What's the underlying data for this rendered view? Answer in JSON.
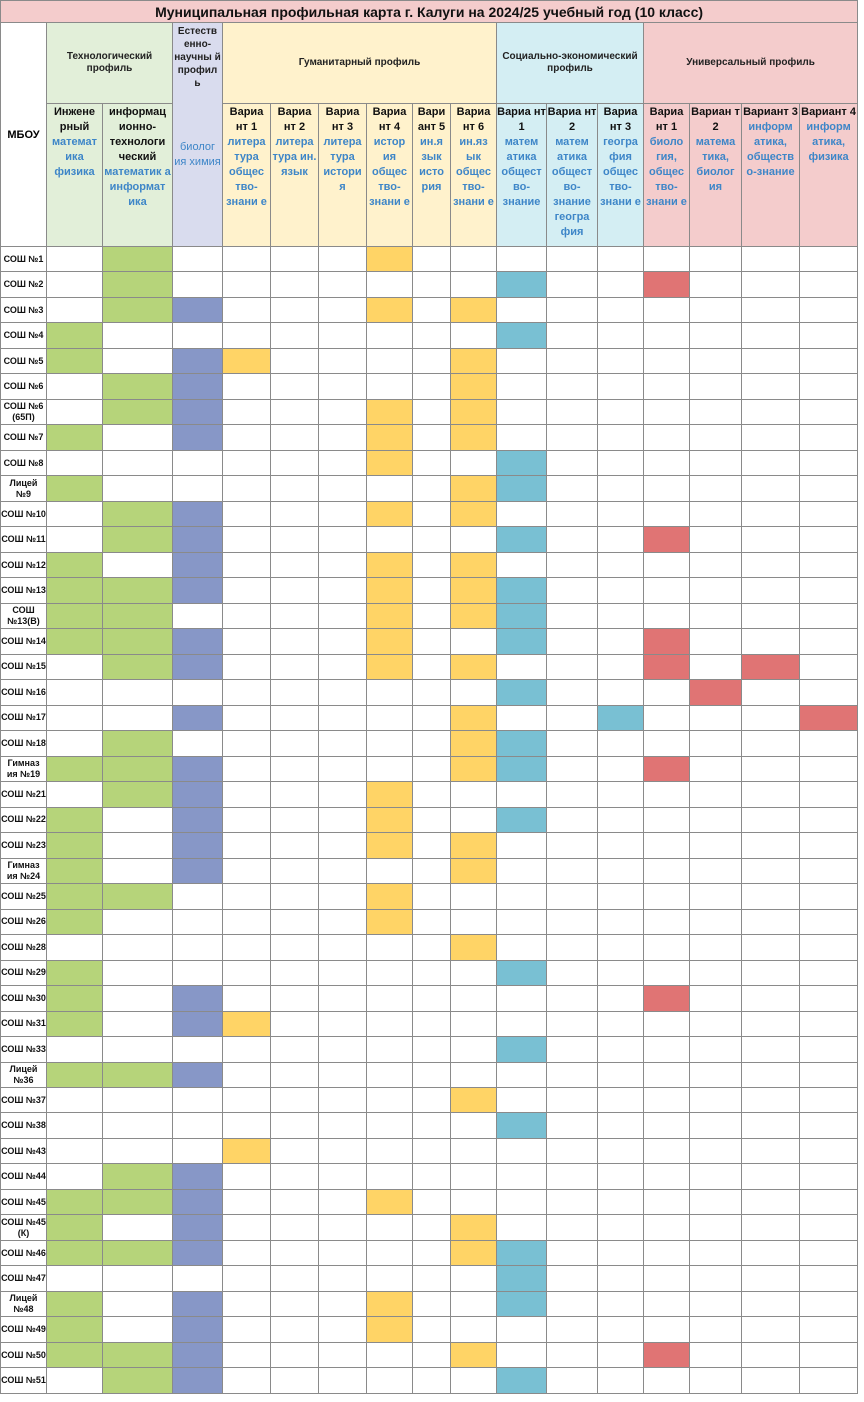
{
  "title": "Муниципальная профильная карта г. Калуги на 2024/25 учебный год (10 класс)",
  "mbou_label": "МБОУ",
  "colors": {
    "tech": "#b6d47a",
    "nat": "#8797c7",
    "hum": "#ffd466",
    "soc": "#79c0d3",
    "uni": "#e07474"
  },
  "groups": [
    {
      "key": "tech",
      "label": "Технологический профиль",
      "span": 2
    },
    {
      "key": "nat",
      "label": "Естеств енно-научны й профил ь",
      "span": 1
    },
    {
      "key": "hum",
      "label": "Гуманитарный профиль",
      "span": 6
    },
    {
      "key": "soc",
      "label": "Социально-экономический профиль",
      "span": 3
    },
    {
      "key": "uni",
      "label": "Универсальный профиль",
      "span": 4
    }
  ],
  "columns": [
    {
      "key": "tech",
      "name": "Инжене рный",
      "subjects": "математ ика физика"
    },
    {
      "key": "tech",
      "name": "информац ионно-технологи ческий",
      "subjects": "математик а информат ика"
    },
    {
      "key": "nat",
      "name": "",
      "subjects": "биолог ия химия"
    },
    {
      "key": "hum",
      "name": "Вариа нт 1",
      "subjects": "литера тура общес тво-знани е"
    },
    {
      "key": "hum",
      "name": "Вариа нт 2",
      "subjects": "литера тура ин. язык"
    },
    {
      "key": "hum",
      "name": "Вариа нт 3",
      "subjects": "литера тура истори я"
    },
    {
      "key": "hum",
      "name": "Вариа нт 4",
      "subjects": "истор ия общес тво-знани е"
    },
    {
      "key": "hum",
      "name": "Вари ант 5",
      "subjects": "ин.я зык исто рия"
    },
    {
      "key": "hum",
      "name": "Вариа нт 6",
      "subjects": "ин.яз ык общес тво-знани е"
    },
    {
      "key": "soc",
      "name": "Вариа нт 1",
      "subjects": "матем атика общест во-знание"
    },
    {
      "key": "soc",
      "name": "Вариа нт 2",
      "subjects": "матем атика общест во-знание геогра фия"
    },
    {
      "key": "soc",
      "name": "Вариа нт 3",
      "subjects": "геогра фия общес тво-знани е"
    },
    {
      "key": "uni",
      "name": "Вариа нт 1",
      "subjects": "биоло гия, общес тво-знани е"
    },
    {
      "key": "uni",
      "name": "Вариан т 2",
      "subjects": "матема тика, биолог ия"
    },
    {
      "key": "uni",
      "name": "Вариант 3",
      "subjects": "информ атика, обществ о-знание"
    },
    {
      "key": "uni",
      "name": "Вариант 4",
      "subjects": "информ атика, физика"
    }
  ],
  "rows": [
    {
      "school": "СОШ №1",
      "marks": [
        0,
        1,
        0,
        0,
        0,
        0,
        1,
        0,
        0,
        0,
        0,
        0,
        0,
        0,
        0,
        0
      ]
    },
    {
      "school": "СОШ №2",
      "marks": [
        0,
        1,
        0,
        0,
        0,
        0,
        0,
        0,
        0,
        1,
        0,
        0,
        1,
        0,
        0,
        0
      ]
    },
    {
      "school": "СОШ №3",
      "marks": [
        0,
        1,
        1,
        0,
        0,
        0,
        1,
        0,
        1,
        0,
        0,
        0,
        0,
        0,
        0,
        0
      ]
    },
    {
      "school": "СОШ №4",
      "marks": [
        1,
        0,
        0,
        0,
        0,
        0,
        0,
        0,
        0,
        1,
        0,
        0,
        0,
        0,
        0,
        0
      ]
    },
    {
      "school": "СОШ №5",
      "marks": [
        1,
        0,
        1,
        1,
        0,
        0,
        0,
        0,
        1,
        0,
        0,
        0,
        0,
        0,
        0,
        0
      ]
    },
    {
      "school": "СОШ №6",
      "marks": [
        0,
        1,
        1,
        0,
        0,
        0,
        0,
        0,
        1,
        0,
        0,
        0,
        0,
        0,
        0,
        0
      ]
    },
    {
      "school": "СОШ №6 (65П)",
      "marks": [
        0,
        1,
        1,
        0,
        0,
        0,
        1,
        0,
        1,
        0,
        0,
        0,
        0,
        0,
        0,
        0
      ]
    },
    {
      "school": "СОШ №7",
      "marks": [
        1,
        0,
        1,
        0,
        0,
        0,
        1,
        0,
        1,
        0,
        0,
        0,
        0,
        0,
        0,
        0
      ]
    },
    {
      "school": "СОШ №8",
      "marks": [
        0,
        0,
        0,
        0,
        0,
        0,
        1,
        0,
        0,
        1,
        0,
        0,
        0,
        0,
        0,
        0
      ]
    },
    {
      "school": "Лицей №9",
      "marks": [
        1,
        0,
        0,
        0,
        0,
        0,
        0,
        0,
        1,
        1,
        0,
        0,
        0,
        0,
        0,
        0
      ]
    },
    {
      "school": "СОШ №10",
      "marks": [
        0,
        1,
        1,
        0,
        0,
        0,
        1,
        0,
        1,
        0,
        0,
        0,
        0,
        0,
        0,
        0
      ]
    },
    {
      "school": "СОШ №11",
      "marks": [
        0,
        1,
        1,
        0,
        0,
        0,
        0,
        0,
        0,
        1,
        0,
        0,
        1,
        0,
        0,
        0
      ]
    },
    {
      "school": "СОШ №12",
      "marks": [
        1,
        0,
        1,
        0,
        0,
        0,
        1,
        0,
        1,
        0,
        0,
        0,
        0,
        0,
        0,
        0
      ]
    },
    {
      "school": "СОШ №13",
      "marks": [
        1,
        1,
        1,
        0,
        0,
        0,
        1,
        0,
        1,
        1,
        0,
        0,
        0,
        0,
        0,
        0
      ]
    },
    {
      "school": "СОШ №13(В)",
      "marks": [
        1,
        1,
        0,
        0,
        0,
        0,
        1,
        0,
        1,
        1,
        0,
        0,
        0,
        0,
        0,
        0
      ]
    },
    {
      "school": "СОШ №14",
      "marks": [
        1,
        1,
        1,
        0,
        0,
        0,
        1,
        0,
        0,
        1,
        0,
        0,
        1,
        0,
        0,
        0
      ]
    },
    {
      "school": "СОШ №15",
      "marks": [
        0,
        1,
        1,
        0,
        0,
        0,
        1,
        0,
        1,
        0,
        0,
        0,
        1,
        0,
        1,
        0
      ]
    },
    {
      "school": "СОШ №16",
      "marks": [
        0,
        0,
        0,
        0,
        0,
        0,
        0,
        0,
        0,
        1,
        0,
        0,
        0,
        1,
        0,
        0
      ]
    },
    {
      "school": "СОШ №17",
      "marks": [
        0,
        0,
        1,
        0,
        0,
        0,
        0,
        0,
        1,
        0,
        0,
        1,
        0,
        0,
        0,
        1
      ]
    },
    {
      "school": "СОШ №18",
      "marks": [
        0,
        1,
        0,
        0,
        0,
        0,
        0,
        0,
        1,
        1,
        0,
        0,
        0,
        0,
        0,
        0
      ]
    },
    {
      "school": "Гимназ ия №19",
      "marks": [
        1,
        1,
        1,
        0,
        0,
        0,
        0,
        0,
        1,
        1,
        0,
        0,
        1,
        0,
        0,
        0
      ]
    },
    {
      "school": "СОШ №21",
      "marks": [
        0,
        1,
        1,
        0,
        0,
        0,
        1,
        0,
        0,
        0,
        0,
        0,
        0,
        0,
        0,
        0
      ]
    },
    {
      "school": "СОШ №22",
      "marks": [
        1,
        0,
        1,
        0,
        0,
        0,
        1,
        0,
        0,
        1,
        0,
        0,
        0,
        0,
        0,
        0
      ]
    },
    {
      "school": "СОШ №23",
      "marks": [
        1,
        0,
        1,
        0,
        0,
        0,
        1,
        0,
        1,
        0,
        0,
        0,
        0,
        0,
        0,
        0
      ]
    },
    {
      "school": "Гимназ ия №24",
      "marks": [
        1,
        0,
        1,
        0,
        0,
        0,
        0,
        0,
        1,
        0,
        0,
        0,
        0,
        0,
        0,
        0
      ]
    },
    {
      "school": "СОШ №25",
      "marks": [
        1,
        1,
        0,
        0,
        0,
        0,
        1,
        0,
        0,
        0,
        0,
        0,
        0,
        0,
        0,
        0
      ]
    },
    {
      "school": "СОШ №26",
      "marks": [
        1,
        0,
        0,
        0,
        0,
        0,
        1,
        0,
        0,
        0,
        0,
        0,
        0,
        0,
        0,
        0
      ]
    },
    {
      "school": "СОШ №28",
      "marks": [
        0,
        0,
        0,
        0,
        0,
        0,
        0,
        0,
        1,
        0,
        0,
        0,
        0,
        0,
        0,
        0
      ]
    },
    {
      "school": "СОШ №29",
      "marks": [
        1,
        0,
        0,
        0,
        0,
        0,
        0,
        0,
        0,
        1,
        0,
        0,
        0,
        0,
        0,
        0
      ]
    },
    {
      "school": "СОШ №30",
      "marks": [
        1,
        0,
        1,
        0,
        0,
        0,
        0,
        0,
        0,
        0,
        0,
        0,
        1,
        0,
        0,
        0
      ]
    },
    {
      "school": "СОШ №31",
      "marks": [
        1,
        0,
        1,
        1,
        0,
        0,
        0,
        0,
        0,
        0,
        0,
        0,
        0,
        0,
        0,
        0
      ]
    },
    {
      "school": "СОШ №33",
      "marks": [
        0,
        0,
        0,
        0,
        0,
        0,
        0,
        0,
        0,
        1,
        0,
        0,
        0,
        0,
        0,
        0
      ]
    },
    {
      "school": "Лицей №36",
      "marks": [
        1,
        1,
        1,
        0,
        0,
        0,
        0,
        0,
        0,
        0,
        0,
        0,
        0,
        0,
        0,
        0
      ]
    },
    {
      "school": "СОШ №37",
      "marks": [
        0,
        0,
        0,
        0,
        0,
        0,
        0,
        0,
        1,
        0,
        0,
        0,
        0,
        0,
        0,
        0
      ]
    },
    {
      "school": "СОШ №38",
      "marks": [
        0,
        0,
        0,
        0,
        0,
        0,
        0,
        0,
        0,
        1,
        0,
        0,
        0,
        0,
        0,
        0
      ]
    },
    {
      "school": "СОШ №43",
      "marks": [
        0,
        0,
        0,
        1,
        0,
        0,
        0,
        0,
        0,
        0,
        0,
        0,
        0,
        0,
        0,
        0
      ]
    },
    {
      "school": "СОШ №44",
      "marks": [
        0,
        1,
        1,
        0,
        0,
        0,
        0,
        0,
        0,
        0,
        0,
        0,
        0,
        0,
        0,
        0
      ]
    },
    {
      "school": "СОШ №45",
      "marks": [
        1,
        1,
        1,
        0,
        0,
        0,
        1,
        0,
        0,
        0,
        0,
        0,
        0,
        0,
        0,
        0
      ]
    },
    {
      "school": "СОШ №45 (К)",
      "marks": [
        1,
        0,
        1,
        0,
        0,
        0,
        0,
        0,
        1,
        0,
        0,
        0,
        0,
        0,
        0,
        0
      ]
    },
    {
      "school": "СОШ №46",
      "marks": [
        1,
        1,
        1,
        0,
        0,
        0,
        0,
        0,
        1,
        1,
        0,
        0,
        0,
        0,
        0,
        0
      ]
    },
    {
      "school": "СОШ №47",
      "marks": [
        0,
        0,
        0,
        0,
        0,
        0,
        0,
        0,
        0,
        1,
        0,
        0,
        0,
        0,
        0,
        0
      ]
    },
    {
      "school": "Лицей №48",
      "marks": [
        1,
        0,
        1,
        0,
        0,
        0,
        1,
        0,
        0,
        1,
        0,
        0,
        0,
        0,
        0,
        0
      ]
    },
    {
      "school": "СОШ №49",
      "marks": [
        1,
        0,
        1,
        0,
        0,
        0,
        1,
        0,
        0,
        0,
        0,
        0,
        0,
        0,
        0,
        0
      ]
    },
    {
      "school": "СОШ №50",
      "marks": [
        1,
        1,
        1,
        0,
        0,
        0,
        0,
        0,
        1,
        0,
        0,
        0,
        1,
        0,
        0,
        0
      ]
    },
    {
      "school": "СОШ №51",
      "marks": [
        0,
        1,
        1,
        0,
        0,
        0,
        0,
        0,
        0,
        1,
        0,
        0,
        0,
        0,
        0,
        0
      ]
    }
  ]
}
